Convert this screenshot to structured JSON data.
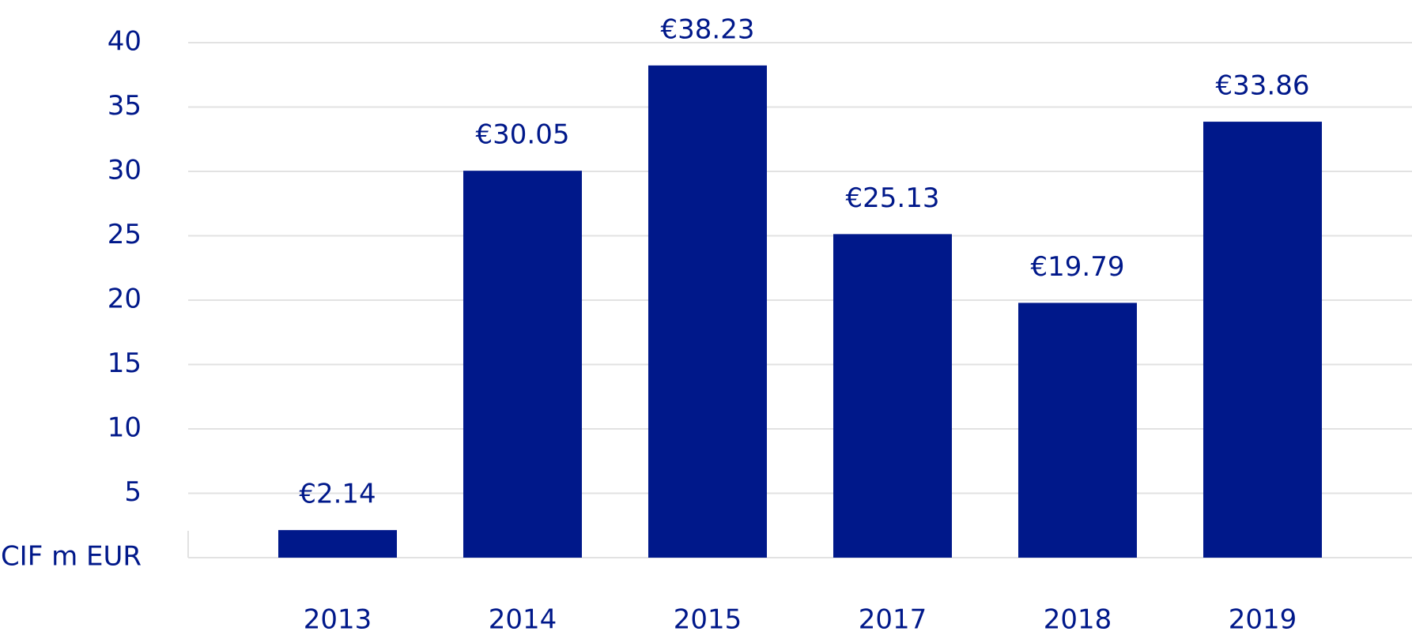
{
  "chart_data": {
    "type": "bar",
    "categories": [
      "2013",
      "2014",
      "2015",
      "2017",
      "2018",
      "2019"
    ],
    "values": [
      2.14,
      30.05,
      38.23,
      25.13,
      19.79,
      33.86
    ],
    "value_labels": [
      "€2.14",
      "€30.05",
      "€38.23",
      "€25.13",
      "€19.79",
      "€33.86"
    ],
    "color": "#00188a",
    "ylim": [
      0,
      40
    ],
    "yticks": [
      {
        "value": 0,
        "label": "CIF m EUR"
      },
      5,
      10,
      15,
      20,
      25,
      30,
      35,
      40
    ],
    "grid": true
  }
}
